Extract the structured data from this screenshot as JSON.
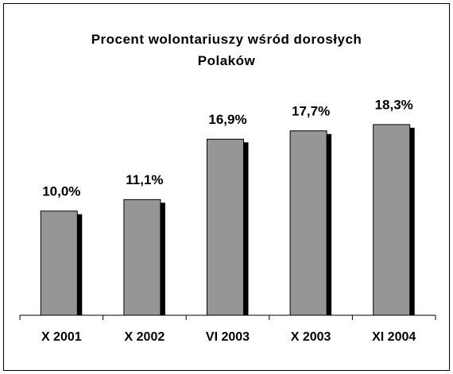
{
  "chart_data": {
    "type": "bar",
    "title": "Procent wolontariuszy wśród dorosłych Polaków",
    "categories": [
      "X 2001",
      "X 2002",
      "VI 2003",
      "X 2003",
      "XI 2004"
    ],
    "values": [
      10.0,
      11.1,
      16.9,
      17.7,
      18.3
    ],
    "value_labels": [
      "10,0%",
      "11,1%",
      "16,9%",
      "17,7%",
      "18,3%"
    ],
    "color": "#969696",
    "ylim": [
      0,
      25
    ]
  }
}
